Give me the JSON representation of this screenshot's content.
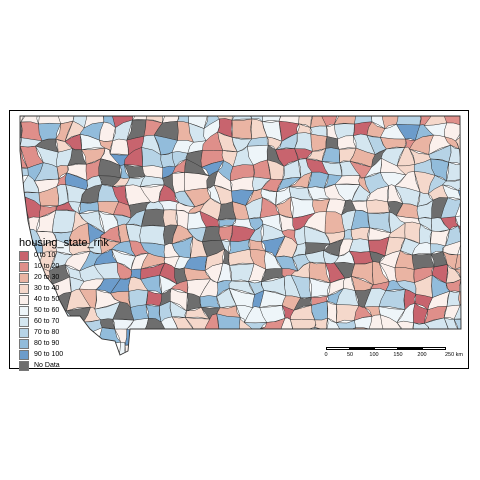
{
  "legend": {
    "title": "housing_state_rnk",
    "items": [
      {
        "label": "0 to 10",
        "color": "#c8646e"
      },
      {
        "label": "10 to 20",
        "color": "#df8f8a"
      },
      {
        "label": "20 to 30",
        "color": "#eab4a3"
      },
      {
        "label": "30 to 40",
        "color": "#f5d8cb"
      },
      {
        "label": "40 to 50",
        "color": "#fbf0ec"
      },
      {
        "label": "50 to 60",
        "color": "#eef5f9"
      },
      {
        "label": "60 to 70",
        "color": "#d4e6f0"
      },
      {
        "label": "70 to 80",
        "color": "#b6d3e6"
      },
      {
        "label": "80 to 90",
        "color": "#92bcdb"
      },
      {
        "label": "90 to 100",
        "color": "#6c9ccb"
      },
      {
        "label": "No Data",
        "color": "#6e6e6e"
      }
    ]
  },
  "scale_bar": {
    "ticks": [
      "0",
      "50",
      "100",
      "150",
      "200",
      "250 km"
    ]
  },
  "map": {
    "region_colors": [
      "#c8646e",
      "#df8f8a",
      "#eab4a3",
      "#f5d8cb",
      "#fbf0ec",
      "#eef5f9",
      "#d4e6f0",
      "#b6d3e6",
      "#92bcdb",
      "#6c9ccb",
      "#6e6e6e"
    ],
    "outline_color": "#333333"
  }
}
